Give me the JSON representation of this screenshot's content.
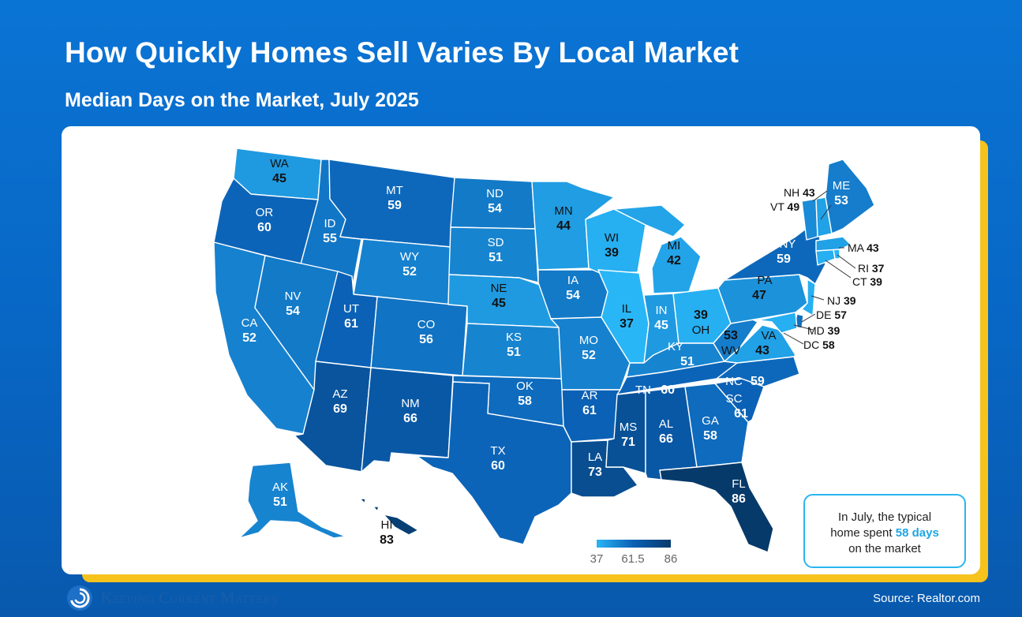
{
  "title": "How Quickly Homes Sell Varies By Local Market",
  "subtitle": "Median Days on the Market, July 2025",
  "legend": {
    "min": "37",
    "mid": "61.5",
    "max": "86"
  },
  "callout": {
    "line1": "In July, the typical",
    "line2_pre": "home spent ",
    "highlight": "58 days",
    "line3": "on the market"
  },
  "brand": "Keeping Current Matters",
  "source": "Source: Realtor.com",
  "colors": {
    "low": "#29b6f6",
    "high": "#063a6a",
    "accent": "#1ea6e4",
    "shadow": "#f6c21c"
  },
  "map_data": {
    "metric": "median days on market",
    "states": [
      {
        "abbr": "WA",
        "value": 45
      },
      {
        "abbr": "OR",
        "value": 60
      },
      {
        "abbr": "CA",
        "value": 52
      },
      {
        "abbr": "ID",
        "value": 55
      },
      {
        "abbr": "NV",
        "value": 54
      },
      {
        "abbr": "MT",
        "value": 59
      },
      {
        "abbr": "WY",
        "value": 52
      },
      {
        "abbr": "UT",
        "value": 61
      },
      {
        "abbr": "AZ",
        "value": 69
      },
      {
        "abbr": "CO",
        "value": 56
      },
      {
        "abbr": "NM",
        "value": 66
      },
      {
        "abbr": "ND",
        "value": 54
      },
      {
        "abbr": "SD",
        "value": 51
      },
      {
        "abbr": "NE",
        "value": 45
      },
      {
        "abbr": "KS",
        "value": 51
      },
      {
        "abbr": "OK",
        "value": 58
      },
      {
        "abbr": "TX",
        "value": 60
      },
      {
        "abbr": "MN",
        "value": 44
      },
      {
        "abbr": "IA",
        "value": 54
      },
      {
        "abbr": "MO",
        "value": 52
      },
      {
        "abbr": "AR",
        "value": 61
      },
      {
        "abbr": "LA",
        "value": 73
      },
      {
        "abbr": "WI",
        "value": 39
      },
      {
        "abbr": "IL",
        "value": 37
      },
      {
        "abbr": "MI",
        "value": 42
      },
      {
        "abbr": "IN",
        "value": 45
      },
      {
        "abbr": "OH",
        "value": 39
      },
      {
        "abbr": "KY",
        "value": 51
      },
      {
        "abbr": "TN",
        "value": 60
      },
      {
        "abbr": "MS",
        "value": 71
      },
      {
        "abbr": "AL",
        "value": 66
      },
      {
        "abbr": "GA",
        "value": 58
      },
      {
        "abbr": "FL",
        "value": 86
      },
      {
        "abbr": "SC",
        "value": 61
      },
      {
        "abbr": "NC",
        "value": 59
      },
      {
        "abbr": "VA",
        "value": 43
      },
      {
        "abbr": "WV",
        "value": 53
      },
      {
        "abbr": "PA",
        "value": 47
      },
      {
        "abbr": "NY",
        "value": 59
      },
      {
        "abbr": "ME",
        "value": 53
      },
      {
        "abbr": "AK",
        "value": 51
      },
      {
        "abbr": "HI",
        "value": 83
      },
      {
        "abbr": "NH",
        "value": 43
      },
      {
        "abbr": "VT",
        "value": 49
      },
      {
        "abbr": "MA",
        "value": 43
      },
      {
        "abbr": "RI",
        "value": 37
      },
      {
        "abbr": "CT",
        "value": 39
      },
      {
        "abbr": "NJ",
        "value": 39
      },
      {
        "abbr": "DE",
        "value": 57
      },
      {
        "abbr": "MD",
        "value": 39
      },
      {
        "abbr": "DC",
        "value": 58
      }
    ]
  }
}
